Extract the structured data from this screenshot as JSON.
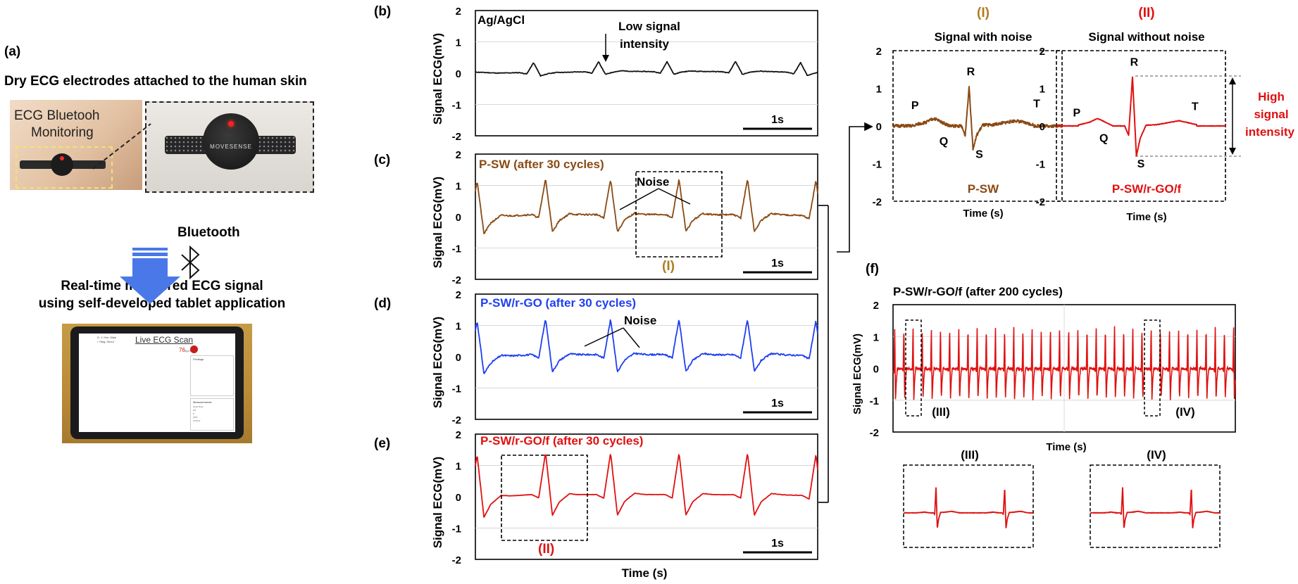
{
  "panel_a": {
    "label": "(a)",
    "heading": "Dry ECG electrodes attached to the human skin",
    "photo_caption_line1": "ECG Bluetooh",
    "photo_caption_line2": "Monitoring",
    "device_logo": "MOVESENSE",
    "bluetooth_label": "Bluetooth",
    "realtime_line1": "Real-time measured ECG signal",
    "realtime_line2": "using self-developed tablet application",
    "tablet": {
      "title": "Live ECG Scan",
      "heart_rate": "76",
      "heart_rate_unit": "bpm",
      "findings_label": "Findings",
      "measurements_label": "Measurements",
      "patient_line1": "D. Y. Kim, Male",
      "patient_line2": "• 76kg, Seoul",
      "measurement_rows": [
        "Heart Rate",
        "PR",
        "P",
        "QRS",
        "QT/QTc"
      ]
    }
  },
  "colors": {
    "agagcl": "#111111",
    "psw": "#8a4a14",
    "psw_rgo": "#1f3ff0",
    "psw_rgo_f": "#e01010",
    "label_I": "#b07b20",
    "label_II": "#e01010",
    "frame": "#000000"
  },
  "common": {
    "ylabel": "Signal ECG(mV)",
    "xlabel": "Time (s)",
    "scale_bar": "1s"
  },
  "panel_b": {
    "label": "(b)",
    "title": "Ag/AgCl",
    "annotation_line1": "Low signal",
    "annotation_line2": "intensity"
  },
  "panel_c": {
    "label": "(c)",
    "title": "P-SW (after 30 cycles)",
    "annotation": "Noise",
    "box_label": "(I)"
  },
  "panel_d": {
    "label": "(d)",
    "title": "P-SW/r-GO (after 30 cycles)",
    "annotation": "Noise"
  },
  "panel_e": {
    "label": "(e)",
    "title": "P-SW/r-GO/f (after 30 cycles)",
    "box_label": "(II)"
  },
  "panel_I": {
    "label": "(I)",
    "title": "Signal with noise",
    "caption": "P-SW",
    "waves": {
      "P": "P",
      "Q": "Q",
      "R": "R",
      "S": "S",
      "T": "T"
    }
  },
  "panel_II": {
    "label": "(II)",
    "title": "Signal without noise",
    "caption": "P-SW/r-GO/f",
    "waves": {
      "P": "P",
      "Q": "Q",
      "R": "R",
      "S": "S",
      "T": "T"
    },
    "annotation_line1": "High",
    "annotation_line2": "signal",
    "annotation_line3": "intensity"
  },
  "panel_f": {
    "label": "(f)",
    "title": "P-SW/r-GO/f (after 200 cycles)",
    "ylabel": "Signal ECG(mV)",
    "xlabel": "Time (s)",
    "marker_III": "(III)",
    "marker_IV": "(IV)",
    "zoom_III": "(III)",
    "zoom_IV": "(IV)"
  },
  "chart_data": [
    {
      "type": "line",
      "name": "panel-b",
      "ylabel": "Signal ECG(mV)",
      "ylim": [
        -2,
        2
      ],
      "yticks": [
        2,
        1,
        0,
        -1,
        -2
      ],
      "series": [
        {
          "name": "Ag/AgCl",
          "r_peak_mV": 0.3,
          "beats": 5
        }
      ]
    },
    {
      "type": "line",
      "name": "panel-c",
      "ylabel": "Signal ECG(mV)",
      "ylim": [
        -2,
        2
      ],
      "yticks": [
        2,
        1,
        0,
        -1,
        -2
      ],
      "series": [
        {
          "name": "P-SW (after 30 cycles)",
          "r_peak_mV": 1.1,
          "beats": 6
        }
      ]
    },
    {
      "type": "line",
      "name": "panel-d",
      "ylabel": "Signal ECG(mV)",
      "ylim": [
        -2,
        2
      ],
      "yticks": [
        2,
        1,
        0,
        -1,
        -2
      ],
      "series": [
        {
          "name": "P-SW/r-GO (after 30 cycles)",
          "r_peak_mV": 1.1,
          "beats": 6
        }
      ]
    },
    {
      "type": "line",
      "name": "panel-e",
      "ylabel": "Signal ECG(mV)",
      "xlabel": "Time (s)",
      "ylim": [
        -2,
        2
      ],
      "yticks": [
        2,
        1,
        0,
        -1,
        -2
      ],
      "series": [
        {
          "name": "P-SW/r-GO/f (after 30 cycles)",
          "r_peak_mV": 1.3,
          "beats": 6
        }
      ]
    },
    {
      "type": "line",
      "name": "panel-I",
      "xlabel": "Time (s)",
      "ylim": [
        -2,
        2
      ],
      "yticks": [
        2,
        1,
        0,
        -1,
        -2
      ],
      "series": [
        {
          "name": "P-SW",
          "r_peak_mV": 1.05,
          "s_mV": -0.6
        }
      ]
    },
    {
      "type": "line",
      "name": "panel-II",
      "xlabel": "Time (s)",
      "ylim": [
        -2,
        2
      ],
      "yticks": [
        2,
        1,
        0,
        -1,
        -2
      ],
      "series": [
        {
          "name": "P-SW/r-GO/f",
          "r_peak_mV": 1.3,
          "s_mV": -0.8
        }
      ]
    },
    {
      "type": "line",
      "name": "panel-f",
      "ylabel": "Signal ECG(mV)",
      "xlabel": "Time (s)",
      "ylim": [
        -2,
        2
      ],
      "yticks": [
        2,
        1,
        0,
        -1,
        -2
      ],
      "series": [
        {
          "name": "P-SW/r-GO/f (after 200 cycles)",
          "r_peak_mV": 1.3,
          "beats": 38
        }
      ]
    }
  ]
}
